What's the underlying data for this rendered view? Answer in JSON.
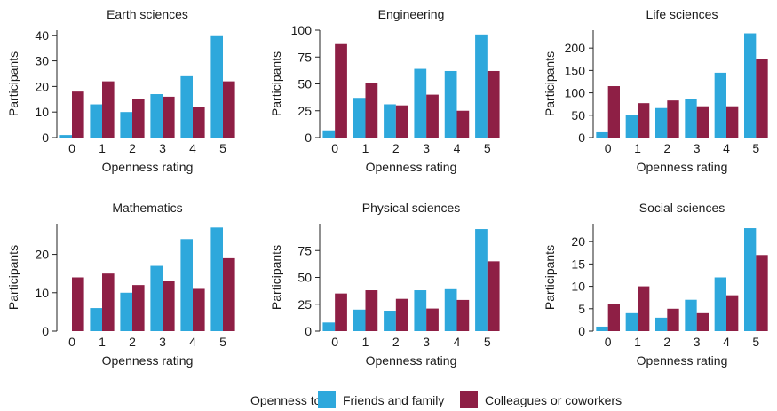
{
  "colors": {
    "friends": "#2ea8dc",
    "colleagues": "#8e1f45",
    "axis": "#222222"
  },
  "legend": {
    "title": "Openness to",
    "items": [
      {
        "label": "Friends and family",
        "color": "#2ea8dc"
      },
      {
        "label": "Colleagues or coworkers",
        "color": "#8e1f45"
      }
    ]
  },
  "chart_data": [
    {
      "type": "bar",
      "title": "Earth sciences",
      "xlabel": "Openness rating",
      "ylabel": "Participants",
      "categories": [
        "0",
        "1",
        "2",
        "3",
        "4",
        "5"
      ],
      "ylim": [
        0,
        42
      ],
      "yticks": [
        0,
        10,
        20,
        30,
        40
      ],
      "series": [
        {
          "name": "Friends and family",
          "values": [
            1,
            13,
            10,
            17,
            24,
            40
          ]
        },
        {
          "name": "Colleagues or coworkers",
          "values": [
            18,
            22,
            15,
            16,
            12,
            22
          ]
        }
      ]
    },
    {
      "type": "bar",
      "title": "Engineering",
      "xlabel": "Openness rating",
      "ylabel": "Participants",
      "categories": [
        "0",
        "1",
        "2",
        "3",
        "4",
        "5"
      ],
      "ylim": [
        0,
        100
      ],
      "yticks": [
        0,
        25,
        50,
        75,
        100
      ],
      "series": [
        {
          "name": "Friends and family",
          "values": [
            6,
            37,
            31,
            64,
            62,
            96
          ]
        },
        {
          "name": "Colleagues or coworkers",
          "values": [
            87,
            51,
            30,
            40,
            25,
            62
          ]
        }
      ]
    },
    {
      "type": "bar",
      "title": "Life sciences",
      "xlabel": "Openness rating",
      "ylabel": "Participants",
      "categories": [
        "0",
        "1",
        "2",
        "3",
        "4",
        "5"
      ],
      "ylim": [
        0,
        240
      ],
      "yticks": [
        0,
        50,
        100,
        150,
        200
      ],
      "series": [
        {
          "name": "Friends and family",
          "values": [
            12,
            50,
            66,
            87,
            145,
            233
          ]
        },
        {
          "name": "Colleagues or coworkers",
          "values": [
            115,
            77,
            83,
            70,
            70,
            175
          ]
        }
      ]
    },
    {
      "type": "bar",
      "title": "Mathematics",
      "xlabel": "Openness rating",
      "ylabel": "Participants",
      "categories": [
        "0",
        "1",
        "2",
        "3",
        "4",
        "5"
      ],
      "ylim": [
        0,
        28
      ],
      "yticks": [
        0,
        10,
        20
      ],
      "series": [
        {
          "name": "Friends and family",
          "values": [
            0,
            6,
            10,
            17,
            24,
            27
          ]
        },
        {
          "name": "Colleagues or coworkers",
          "values": [
            14,
            15,
            12,
            13,
            11,
            19
          ]
        }
      ]
    },
    {
      "type": "bar",
      "title": "Physical sciences",
      "xlabel": "Openness rating",
      "ylabel": "Participants",
      "categories": [
        "0",
        "1",
        "2",
        "3",
        "4",
        "5"
      ],
      "ylim": [
        0,
        100
      ],
      "yticks": [
        0,
        25,
        50,
        75
      ],
      "series": [
        {
          "name": "Friends and family",
          "values": [
            8,
            20,
            19,
            38,
            39,
            95
          ]
        },
        {
          "name": "Colleagues or coworkers",
          "values": [
            35,
            38,
            30,
            21,
            29,
            65
          ]
        }
      ]
    },
    {
      "type": "bar",
      "title": "Social sciences",
      "xlabel": "Openness rating",
      "ylabel": "Participants",
      "categories": [
        "0",
        "1",
        "2",
        "3",
        "4",
        "5"
      ],
      "ylim": [
        0,
        24
      ],
      "yticks": [
        0,
        5,
        10,
        15,
        20
      ],
      "series": [
        {
          "name": "Friends and family",
          "values": [
            1,
            4,
            3,
            7,
            12,
            23
          ]
        },
        {
          "name": "Colleagues or coworkers",
          "values": [
            6,
            10,
            5,
            4,
            8,
            17
          ]
        }
      ]
    }
  ]
}
